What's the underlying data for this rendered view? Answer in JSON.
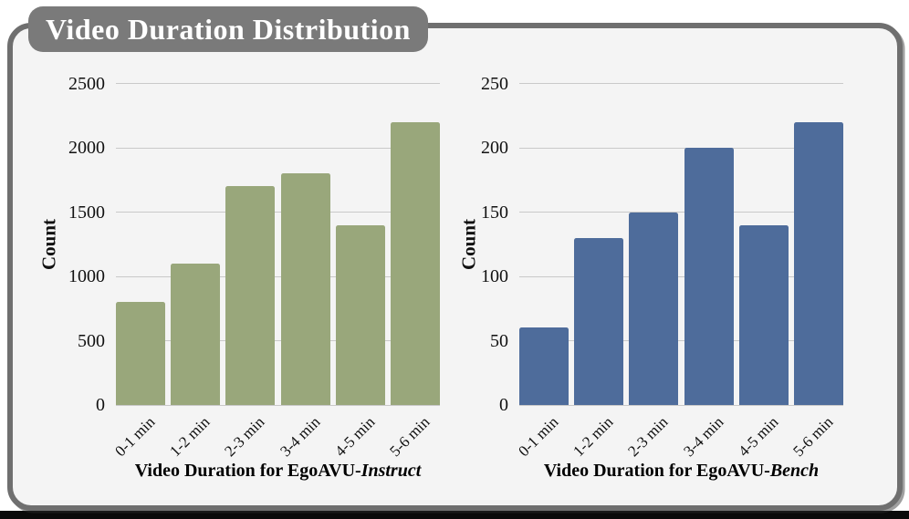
{
  "title": "Video Duration Distribution",
  "colors": {
    "frame_background": "#F4F4F4",
    "frame_border": "#6F6F6F",
    "title_badge_background": "#7A7A7A",
    "title_text": "#FFFFFF",
    "gridline": "#C9C9C9",
    "instruct_bar": "#99A77B",
    "bench_bar": "#4E6C9B",
    "bottom_bar": "#0A0A0A"
  },
  "chart_data": [
    {
      "type": "bar",
      "categories": [
        "0-1 min",
        "1-2 min",
        "2-3 min",
        "3-4 min",
        "4-5 min",
        "5-6 min"
      ],
      "values": [
        800,
        1100,
        1700,
        1800,
        1400,
        2200
      ],
      "ylabel": "Count",
      "xlabel": "Video Duration for EgoAVU-Instruct",
      "xlabel_regular": "Video Duration for EgoAVU-",
      "xlabel_italic": "Instruct",
      "ylim": [
        0,
        2500
      ],
      "yticks": [
        0,
        500,
        1000,
        1500,
        2000,
        2500
      ],
      "grid": true,
      "legend": false,
      "bar_color": "#99A77B"
    },
    {
      "type": "bar",
      "categories": [
        "0-1 min",
        "1-2 min",
        "2-3 min",
        "3-4 min",
        "4-5 min",
        "5-6 min"
      ],
      "values": [
        60,
        130,
        150,
        200,
        140,
        220
      ],
      "ylabel": "Count",
      "xlabel": "Video Duration for EgoAVU-Bench",
      "xlabel_regular": "Video Duration for EgoAVU-",
      "xlabel_italic": "Bench",
      "ylim": [
        0,
        250
      ],
      "yticks": [
        0,
        50,
        100,
        150,
        200,
        250
      ],
      "grid": true,
      "legend": false,
      "bar_color": "#4E6C9B"
    }
  ]
}
